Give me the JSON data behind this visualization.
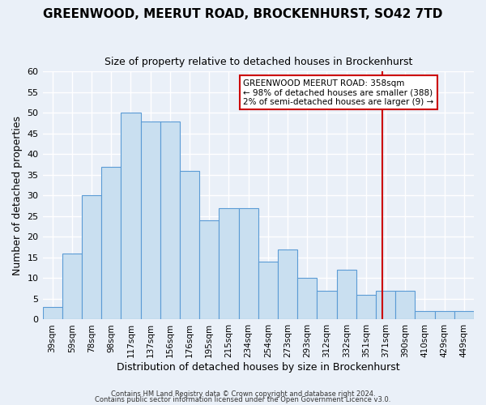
{
  "title": "GREENWOOD, MEERUT ROAD, BROCKENHURST, SO42 7TD",
  "subtitle": "Size of property relative to detached houses in Brockenhurst",
  "xlabel": "Distribution of detached houses by size in Brockenhurst",
  "ylabel": "Number of detached properties",
  "bar_values": [
    3,
    16,
    30,
    37,
    50,
    48,
    48,
    36,
    24,
    27,
    27,
    14,
    17,
    10,
    7,
    12,
    6,
    7,
    7,
    2,
    2,
    2
  ],
  "bin_labels": [
    "39sqm",
    "59sqm",
    "78sqm",
    "98sqm",
    "117sqm",
    "137sqm",
    "156sqm",
    "176sqm",
    "195sqm",
    "215sqm",
    "234sqm",
    "254sqm",
    "273sqm",
    "293sqm",
    "312sqm",
    "332sqm",
    "351sqm",
    "371sqm",
    "390sqm",
    "410sqm",
    "429sqm",
    "449sqm"
  ],
  "bar_color": "#c9dff0",
  "bar_edge_color": "#5b9bd5",
  "background_color": "#eaf0f8",
  "grid_color": "#ffffff",
  "vline_value_index": 16.85,
  "vline_color": "#cc0000",
  "annotation_title": "GREENWOOD MEERUT ROAD: 358sqm",
  "annotation_line1": "← 98% of detached houses are smaller (388)",
  "annotation_line2": "2% of semi-detached houses are larger (9) →",
  "annotation_box_color": "#cc0000",
  "ylim": [
    0,
    60
  ],
  "yticks": [
    0,
    5,
    10,
    15,
    20,
    25,
    30,
    35,
    40,
    45,
    50,
    55,
    60
  ],
  "footer1": "Contains HM Land Registry data © Crown copyright and database right 2024.",
  "footer2": "Contains public sector information licensed under the Open Government Licence v3.0."
}
